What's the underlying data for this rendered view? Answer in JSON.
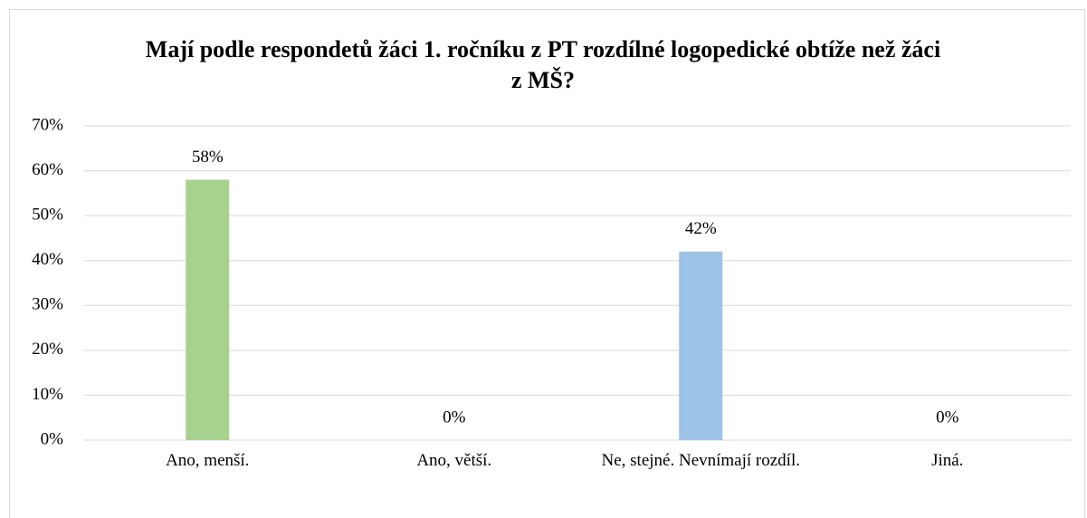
{
  "chart_data": {
    "type": "bar",
    "title": "Mají podle respondetů žáci 1. ročníku z PT rozdílné logopedické obtíže než žáci z MŠ?",
    "categories": [
      "Ano, menší.",
      "Ano, větší.",
      "Ne, stejné. Nevnímají rozdíl.",
      "Jiná."
    ],
    "values": [
      58,
      0,
      42,
      0
    ],
    "value_labels": [
      "58%",
      "0%",
      "42%",
      "0%"
    ],
    "colors": [
      "#a9d18e",
      "#a9d18e",
      "#9dc3e6",
      "#9dc3e6"
    ],
    "ylim": [
      0,
      70
    ],
    "yticks": [
      {
        "value": 0,
        "label": "0%"
      },
      {
        "value": 10,
        "label": "10%"
      },
      {
        "value": 20,
        "label": "20%"
      },
      {
        "value": 30,
        "label": "30%"
      },
      {
        "value": 40,
        "label": "40%"
      },
      {
        "value": 50,
        "label": "50%"
      },
      {
        "value": 60,
        "label": "60%"
      },
      {
        "value": 70,
        "label": "70%"
      }
    ],
    "grid": true
  }
}
